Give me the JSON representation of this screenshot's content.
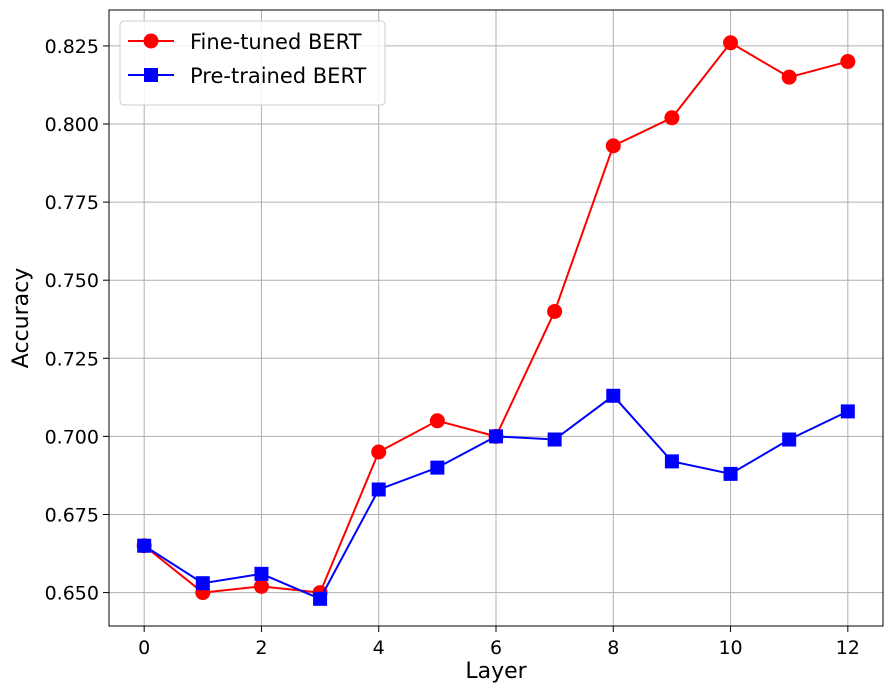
{
  "chart_data": {
    "type": "line",
    "xlabel": "Layer",
    "ylabel": "Accuracy",
    "xlim": [
      -0.6,
      12.6
    ],
    "ylim": [
      0.6393,
      0.8365
    ],
    "xticks": [
      0,
      2,
      4,
      6,
      8,
      10,
      12
    ],
    "xtick_labels": [
      "0",
      "2",
      "4",
      "6",
      "8",
      "10",
      "12"
    ],
    "yticks": [
      0.65,
      0.675,
      0.7,
      0.725,
      0.75,
      0.775,
      0.8,
      0.825
    ],
    "ytick_labels": [
      "0.650",
      "0.675",
      "0.700",
      "0.725",
      "0.750",
      "0.775",
      "0.800",
      "0.825"
    ],
    "grid": true,
    "legend_position": "top-left",
    "x": [
      0,
      1,
      2,
      3,
      4,
      5,
      6,
      7,
      8,
      9,
      10,
      11,
      12
    ],
    "series": [
      {
        "name": "Fine-tuned BERT",
        "color": "#ff0000",
        "marker": "circle",
        "values": [
          0.665,
          0.65,
          0.652,
          0.65,
          0.695,
          0.705,
          0.7,
          0.74,
          0.793,
          0.802,
          0.826,
          0.815,
          0.82
        ]
      },
      {
        "name": "Pre-trained BERT",
        "color": "#0000ff",
        "marker": "square",
        "values": [
          0.665,
          0.653,
          0.656,
          0.648,
          0.683,
          0.69,
          0.7,
          0.699,
          0.713,
          0.692,
          0.688,
          0.699,
          0.708
        ]
      }
    ]
  }
}
